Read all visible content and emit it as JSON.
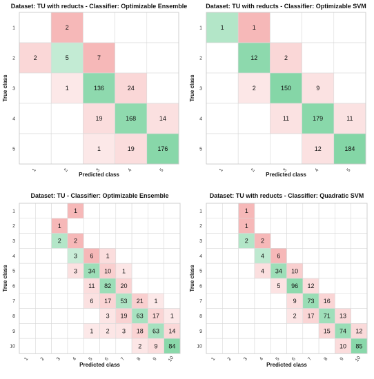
{
  "chart_data": [
    {
      "type": "heatmap",
      "title": "Dataset: TU with reducts - Classifier: Optimizable Ensemble",
      "xlabel": "Predicted class",
      "ylabel": "True class",
      "classes": [
        "1",
        "2",
        "3",
        "4",
        "5"
      ],
      "matrix": [
        [
          0,
          2,
          0,
          0,
          0
        ],
        [
          2,
          5,
          7,
          0,
          0
        ],
        [
          0,
          1,
          136,
          24,
          0
        ],
        [
          0,
          0,
          19,
          168,
          14
        ],
        [
          0,
          0,
          1,
          19,
          176
        ]
      ],
      "colors": {
        "diagonal": "#6fcf97",
        "off_diagonal": "#f4a6a6"
      }
    },
    {
      "type": "heatmap",
      "title": "Dataset: TU with reducts - Classifier: Optimizable SVM",
      "xlabel": "Predicted class",
      "ylabel": "True class",
      "classes": [
        "1",
        "2",
        "3",
        "4",
        "5"
      ],
      "matrix": [
        [
          1,
          1,
          0,
          0,
          0
        ],
        [
          0,
          12,
          2,
          0,
          0
        ],
        [
          0,
          2,
          150,
          9,
          0
        ],
        [
          0,
          0,
          11,
          179,
          11
        ],
        [
          0,
          0,
          0,
          12,
          184
        ]
      ],
      "colors": {
        "diagonal": "#6fcf97",
        "off_diagonal": "#f4a6a6"
      }
    },
    {
      "type": "heatmap",
      "title": "Dataset: TU - Classifier: Optimizable Ensemble",
      "xlabel": "Predicted class",
      "ylabel": "True class",
      "classes": [
        "1",
        "2",
        "3",
        "4",
        "5",
        "6",
        "7",
        "8",
        "9",
        "10"
      ],
      "matrix": [
        [
          0,
          0,
          0,
          1,
          0,
          0,
          0,
          0,
          0,
          0
        ],
        [
          0,
          0,
          1,
          0,
          0,
          0,
          0,
          0,
          0,
          0
        ],
        [
          0,
          0,
          2,
          2,
          0,
          0,
          0,
          0,
          0,
          0
        ],
        [
          0,
          0,
          0,
          3,
          6,
          1,
          0,
          0,
          0,
          0
        ],
        [
          0,
          0,
          0,
          3,
          34,
          10,
          1,
          0,
          0,
          0
        ],
        [
          0,
          0,
          0,
          0,
          11,
          82,
          20,
          0,
          0,
          0
        ],
        [
          0,
          0,
          0,
          0,
          6,
          17,
          53,
          21,
          1,
          0
        ],
        [
          0,
          0,
          0,
          0,
          0,
          3,
          19,
          63,
          17,
          1
        ],
        [
          0,
          0,
          0,
          0,
          1,
          2,
          3,
          18,
          63,
          14
        ],
        [
          0,
          0,
          0,
          0,
          0,
          0,
          0,
          2,
          9,
          84
        ]
      ],
      "colors": {
        "diagonal": "#6fcf97",
        "off_diagonal": "#f4a6a6"
      }
    },
    {
      "type": "heatmap",
      "title": "Dataset: TU with reducts - Classifier: Quadratic SVM",
      "xlabel": "Predicted class",
      "ylabel": "True class",
      "classes": [
        "1",
        "2",
        "3",
        "4",
        "5",
        "6",
        "7",
        "8",
        "9",
        "10"
      ],
      "matrix": [
        [
          0,
          0,
          1,
          0,
          0,
          0,
          0,
          0,
          0,
          0
        ],
        [
          0,
          0,
          1,
          0,
          0,
          0,
          0,
          0,
          0,
          0
        ],
        [
          0,
          0,
          2,
          2,
          0,
          0,
          0,
          0,
          0,
          0
        ],
        [
          0,
          0,
          0,
          4,
          6,
          0,
          0,
          0,
          0,
          0
        ],
        [
          0,
          0,
          0,
          4,
          34,
          10,
          0,
          0,
          0,
          0
        ],
        [
          0,
          0,
          0,
          0,
          5,
          96,
          12,
          0,
          0,
          0
        ],
        [
          0,
          0,
          0,
          0,
          0,
          9,
          73,
          16,
          0,
          0
        ],
        [
          0,
          0,
          0,
          0,
          0,
          2,
          17,
          71,
          13,
          0
        ],
        [
          0,
          0,
          0,
          0,
          0,
          0,
          0,
          15,
          74,
          12
        ],
        [
          0,
          0,
          0,
          0,
          0,
          0,
          0,
          0,
          10,
          85
        ]
      ],
      "colors": {
        "diagonal": "#6fcf97",
        "off_diagonal": "#f4a6a6"
      }
    }
  ]
}
